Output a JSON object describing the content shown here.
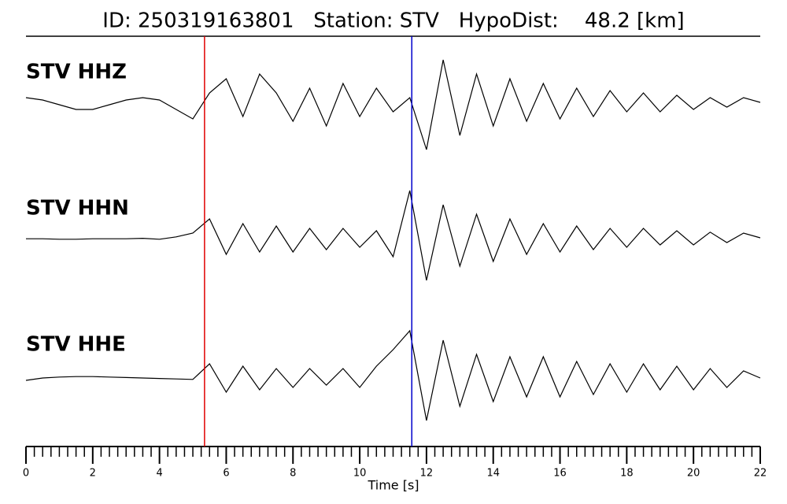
{
  "chart_data": {
    "type": "line",
    "title": "ID: 250319163801   Station: STV   HypoDist:    48.2 [km]",
    "xlabel": "Time [s]",
    "x": [
      0,
      0.5,
      1,
      1.5,
      2,
      2.5,
      3,
      3.5,
      4,
      4.5,
      5,
      5.5,
      6,
      6.5,
      7,
      7.5,
      8,
      8.5,
      9,
      9.5,
      10,
      10.5,
      11,
      11.5,
      12,
      12.5,
      13,
      13.5,
      14,
      14.5,
      15,
      15.5,
      16,
      16.5,
      17,
      17.5,
      18,
      18.5,
      19,
      19.5,
      20,
      20.5,
      21,
      21.5,
      22
    ],
    "xlim": [
      0,
      22
    ],
    "xticks": [
      0,
      2,
      4,
      6,
      8,
      10,
      12,
      14,
      16,
      18,
      20,
      22
    ],
    "minor_xtick_step": 0.25,
    "label_color": "#4a9a00",
    "series": [
      {
        "name": "STV HHZ",
        "color": "#000000",
        "values": [
          0.1,
          0.05,
          -0.05,
          -0.15,
          -0.15,
          -0.05,
          0.05,
          0.1,
          0.05,
          -0.15,
          -0.35,
          0.2,
          0.5,
          -0.3,
          0.6,
          0.2,
          -0.4,
          0.3,
          -0.5,
          0.4,
          -0.3,
          0.3,
          -0.2,
          0.1,
          -1.0,
          0.9,
          -0.7,
          0.6,
          -0.5,
          0.5,
          -0.4,
          0.4,
          -0.35,
          0.3,
          -0.3,
          0.25,
          -0.2,
          0.2,
          -0.2,
          0.15,
          -0.15,
          0.1,
          -0.1,
          0.1,
          0.0
        ]
      },
      {
        "name": "STV HHN",
        "color": "#000000",
        "values": [
          -0.02,
          -0.02,
          -0.03,
          -0.03,
          -0.02,
          -0.02,
          -0.02,
          -0.01,
          -0.03,
          0.02,
          0.1,
          0.4,
          -0.35,
          0.3,
          -0.3,
          0.25,
          -0.3,
          0.2,
          -0.25,
          0.2,
          -0.2,
          0.15,
          -0.4,
          1.0,
          -0.9,
          0.7,
          -0.6,
          0.5,
          -0.5,
          0.4,
          -0.35,
          0.3,
          -0.3,
          0.25,
          -0.25,
          0.2,
          -0.2,
          0.2,
          -0.15,
          0.15,
          -0.15,
          0.12,
          -0.1,
          0.1,
          0.0
        ]
      },
      {
        "name": "STV HHE",
        "color": "#000000",
        "values": [
          -0.05,
          0,
          0.02,
          0.03,
          0.03,
          0.02,
          0.01,
          0,
          -0.01,
          -0.02,
          -0.03,
          0.3,
          -0.3,
          0.25,
          -0.25,
          0.2,
          -0.2,
          0.2,
          -0.15,
          0.2,
          -0.2,
          0.25,
          0.6,
          1.0,
          -0.9,
          0.8,
          -0.6,
          0.5,
          -0.5,
          0.45,
          -0.4,
          0.45,
          -0.4,
          0.35,
          -0.35,
          0.3,
          -0.3,
          0.3,
          -0.25,
          0.25,
          -0.25,
          0.2,
          -0.2,
          0.15,
          0.0
        ]
      }
    ],
    "picks": [
      {
        "value": 5.35,
        "color": "#e00000"
      },
      {
        "value": 11.56,
        "color": "#0000cc"
      }
    ]
  }
}
